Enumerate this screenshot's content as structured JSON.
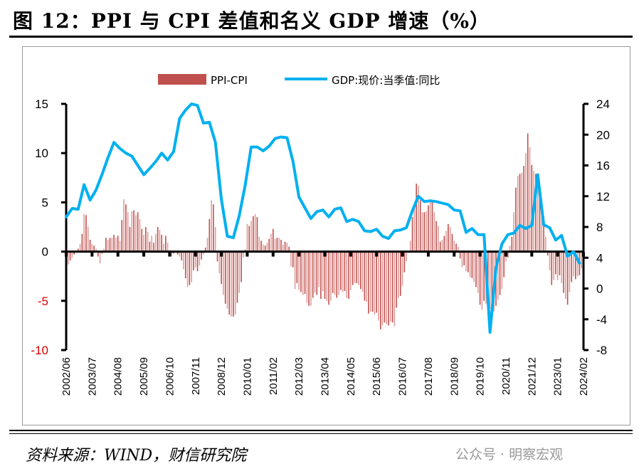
{
  "title": "图 12：PPI 与 CPI 差值和名义 GDP 增速（%）",
  "source": "资料来源：WIND，财信研究院",
  "watermark": "公众号 · 明察宏观",
  "chart_data": {
    "type": "bar+line",
    "title": "",
    "legend_position": "top",
    "grid": false,
    "x_tick_labels": [
      "2002/06",
      "2003/07",
      "2004/08",
      "2005/09",
      "2006/10",
      "2007/11",
      "2008/12",
      "2010/01",
      "2011/02",
      "2012/03",
      "2013/04",
      "2014/05",
      "2015/06",
      "2016/07",
      "2017/08",
      "2018/09",
      "2019/10",
      "2020/11",
      "2021/12",
      "2023/01",
      "2024/02"
    ],
    "x_range": [
      "2002/06",
      "2024/02"
    ],
    "left_axis": {
      "ylim": [
        -10,
        15
      ],
      "ticks": [
        15,
        10,
        5,
        0,
        -5,
        -10
      ],
      "negative_tick_color": "#e00000"
    },
    "right_axis": {
      "ylim": [
        -8,
        24
      ],
      "ticks": [
        24,
        20,
        16,
        12,
        8,
        4,
        0,
        -4,
        -8
      ]
    },
    "series": [
      {
        "name": "PPI-CPI",
        "type": "bar",
        "axis": "left",
        "color": "#c0504d",
        "frequency": "monthly",
        "start": "2002/06",
        "values": [
          -1.5,
          -1.3,
          -0.9,
          -0.6,
          -0.3,
          0,
          0.3,
          0.8,
          1.8,
          3.8,
          3.7,
          2.5,
          1.2,
          0.8,
          0.6,
          0.3,
          -0.5,
          -1.2,
          -0.2,
          0.3,
          1.4,
          1.2,
          1.4,
          1.4,
          1.7,
          1.4,
          1.6,
          1.1,
          3.2,
          5.3,
          4.8,
          4.0,
          2.5,
          4.1,
          4.2,
          3.7,
          4.0,
          3.3,
          2.3,
          1.7,
          2.5,
          2.0,
          1.0,
          1.6,
          0.9,
          1.8,
          2.5,
          2.2,
          1.7,
          0.8,
          1.6,
          0.9,
          0.1,
          -0.5,
          -0.2,
          -0.1,
          -0.3,
          -0.5,
          -0.9,
          -1.8,
          -2.7,
          -3.6,
          -3.4,
          -3.1,
          -1.9,
          -1.6,
          -2.0,
          -1.4,
          -0.8,
          -0.3,
          0.4,
          1.4,
          3.3,
          5.2,
          4.8,
          2.5,
          -1.0,
          -2.2,
          -3.3,
          -4.4,
          -5.3,
          -5.8,
          -6.4,
          -6.6,
          -6.6,
          -6.4,
          -5.2,
          -4.2,
          -3.1,
          -0.6,
          0.2,
          2.8,
          2.6,
          3.1,
          3.6,
          3.8,
          3.5,
          1.5,
          1.1,
          0.7,
          0.6,
          0.9,
          1.3,
          1.8,
          2.3,
          1.3,
          1.4,
          1.4,
          1.2,
          0.7,
          1.0,
          0.9,
          0.5,
          -1.5,
          -1.6,
          -3.8,
          -3.2,
          -3.9,
          -4.1,
          -4.4,
          -4.3,
          -5.2,
          -5.5,
          -5.5,
          -4.7,
          -4.2,
          -4.4,
          -3.6,
          -4.8,
          -4.0,
          -4.8,
          -5.0,
          -5.4,
          -5.0,
          -4.2,
          -4.4,
          -4.7,
          -4.4,
          -3.9,
          -4.1,
          -4.0,
          -4.7,
          -4.8,
          -3.9,
          -3.4,
          -3.2,
          -3.2,
          -3.4,
          -3.8,
          -4.1,
          -5.0,
          -5.1,
          -6.3,
          -6.1,
          -6.1,
          -6.4,
          -6.2,
          -7.0,
          -7.9,
          -7.5,
          -7.2,
          -7.4,
          -7.5,
          -7.1,
          -7.2,
          -7.6,
          -5.7,
          -4.7,
          -4.5,
          -3.5,
          -2.1,
          -1.0,
          -0.1,
          1.1,
          3.5,
          4.4,
          6.9,
          6.7,
          5.2,
          4.0,
          4.0,
          4.1,
          4.7,
          5.3,
          5.0,
          4.0,
          3.1,
          2.6,
          1.0,
          1.2,
          1.6,
          2.1,
          2.8,
          2.5,
          1.8,
          1.1,
          0.8,
          0.5,
          -0.7,
          -1.6,
          -1.4,
          -2.0,
          -2.1,
          -2.6,
          -2.7,
          -3.1,
          -3.6,
          -4.2,
          -5.4,
          -5.9,
          -5.0,
          -5.3,
          -5.6,
          -5.8,
          -6.4,
          -6.1,
          -5.5,
          -4.9,
          -4.4,
          -3.8,
          -2.6,
          -1.0,
          -0.6,
          0.6,
          1.5,
          4.0,
          6.5,
          7.7,
          7.9,
          8.0,
          8.7,
          10.0,
          12.0,
          10.6,
          8.8,
          8.2,
          7.9,
          6.8,
          5.9,
          4.3,
          3.6,
          1.5,
          -0.4,
          -1.9,
          -3.4,
          -2.9,
          -2.3,
          -2.9,
          -2.4,
          -3.2,
          -4.2,
          -4.8,
          -5.4,
          -4.1,
          -3.1,
          -2.5,
          -2.8,
          -2.5,
          -2.4,
          -1.7,
          -2.5
        ]
      },
      {
        "name": "GDP:现价:当季值:同比",
        "type": "line",
        "axis": "right",
        "color": "#00b0f0",
        "frequency": "quarterly",
        "start": "2002/06",
        "values": [
          9.3,
          10.4,
          10.3,
          13.5,
          11.5,
          12.8,
          14.8,
          17.0,
          19.0,
          18.2,
          17.6,
          17.2,
          16.0,
          14.8,
          15.6,
          16.5,
          17.6,
          16.7,
          17.8,
          22.1,
          23.2,
          24.0,
          23.8,
          21.5,
          21.6,
          19.0,
          11.6,
          6.8,
          6.6,
          9.5,
          13.5,
          18.4,
          18.4,
          17.9,
          18.5,
          19.5,
          19.7,
          19.6,
          16.5,
          11.9,
          10.5,
          9.1,
          10.0,
          10.2,
          9.3,
          10.3,
          10.5,
          8.7,
          9.0,
          8.7,
          7.5,
          7.4,
          7.7,
          6.8,
          6.5,
          7.5,
          7.6,
          7.9,
          10.1,
          12.0,
          11.3,
          11.4,
          11.3,
          11.1,
          10.9,
          10.2,
          10.1,
          7.3,
          7.8,
          7.0,
          7.0,
          -5.7,
          2.7,
          5.8,
          7.0,
          7.2,
          8.2,
          7.8,
          8.2,
          14.8,
          8.3,
          7.9,
          6.3,
          6.9,
          4.2,
          4.8,
          3.3
        ]
      }
    ]
  }
}
